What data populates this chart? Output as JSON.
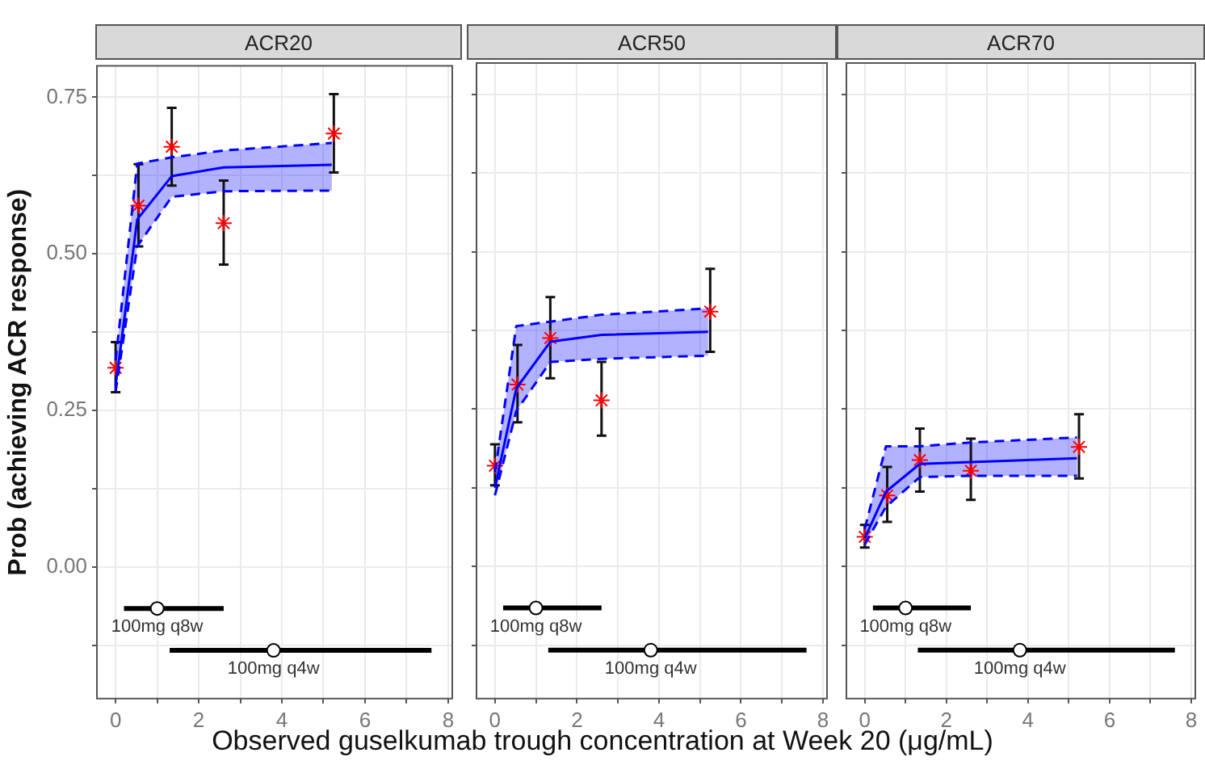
{
  "chart_data": [
    {
      "type": "line",
      "title": "ACR20",
      "ylabel": "Prob (achieving ACR response)",
      "xlim": [
        -0.45,
        8.1
      ],
      "ylim": [
        -0.21,
        0.8
      ],
      "xticks": [
        0,
        {
          "value": 1,
          "label": null
        },
        2,
        {
          "value": 3,
          "label": null
        },
        4,
        {
          "value": 5,
          "label": null
        },
        6,
        {
          "value": 7,
          "label": null
        },
        8
      ],
      "yticks": [
        {
          "value": -0.125,
          "label": null
        },
        {
          "value": 0,
          "label": "0.00"
        },
        {
          "value": 0.125,
          "label": null
        },
        {
          "value": 0.25,
          "label": "0.25"
        },
        {
          "value": 0.375,
          "label": null
        },
        {
          "value": 0.5,
          "label": "0.50"
        },
        {
          "value": 0.625,
          "label": null
        },
        {
          "value": 0.75,
          "label": "0.75"
        }
      ],
      "grid": true,
      "series": [
        {
          "color": "#0000ff",
          "marker": "none",
          "x": [
            0,
            0.52,
            1.35,
            2.6,
            5.2
          ],
          "values": [
            0.29,
            0.555,
            0.624,
            0.638,
            0.642
          ],
          "lower": [
            0.28,
            0.512,
            0.591,
            0.6,
            0.601
          ],
          "upper": [
            0.33,
            0.644,
            0.654,
            0.665,
            0.677
          ]
        },
        {
          "color": "#0000ff",
          "marker": "none",
          "line_style": "dashed",
          "x": [
            0,
            0.52,
            1.35,
            2.6,
            5.2
          ],
          "values": [
            0.28,
            0.512,
            0.591,
            0.6,
            0.601
          ]
        },
        {
          "color": "#0000ff",
          "marker": "none",
          "line_style": "dashed",
          "x": [
            0,
            0.52,
            1.35,
            2.6,
            5.2
          ],
          "values": [
            0.33,
            0.644,
            0.654,
            0.665,
            0.677
          ]
        },
        {
          "type": "scatter",
          "color": "#ff0000",
          "marker": "cross",
          "x": [
            0,
            0.55,
            1.35,
            2.6,
            5.25
          ],
          "values": [
            0.318,
            0.577,
            0.671,
            0.549,
            0.692
          ],
          "errors": [
            [
              0.279,
              0.359
            ],
            [
              0.512,
              0.643
            ],
            [
              0.609,
              0.733
            ],
            [
              0.483,
              0.617
            ],
            [
              0.63,
              0.755
            ]
          ]
        },
        {
          "type": "scatter",
          "color": "#000000",
          "marker": "circle",
          "x": [
            1.0,
            3.8
          ],
          "values": [
            -0.066,
            -0.133
          ],
          "xerrors": [
            [
              0.2,
              2.6
            ],
            [
              1.3,
              7.6
            ]
          ]
        }
      ],
      "annotations": [
        "100mg q8w",
        "100mg q4w"
      ]
    },
    {
      "type": "line",
      "title": "ACR50",
      "xlabel": "Observed guselkumab trough concentration at Week 20 (μg/mL)",
      "xlim": [
        -0.45,
        8.1
      ],
      "ylim": [
        -0.21,
        0.8
      ],
      "tick_labels": "x",
      "xticks": [
        0,
        {
          "value": 1,
          "label": null
        },
        2,
        {
          "value": 3,
          "label": null
        },
        4,
        {
          "value": 5,
          "label": null
        },
        6,
        {
          "value": 7,
          "label": null
        },
        8
      ],
      "yticks": [
        -0.125,
        0,
        0.125,
        0.25,
        0.375,
        0.5,
        0.625,
        0.75
      ],
      "grid": true,
      "series": [
        {
          "color": "#0000ff",
          "marker": "none",
          "x": [
            0,
            0.52,
            1.35,
            2.6,
            5.2
          ],
          "values": [
            0.125,
            0.283,
            0.357,
            0.368,
            0.373
          ],
          "lower": [
            0.113,
            0.247,
            0.325,
            0.33,
            0.335
          ],
          "upper": [
            0.15,
            0.382,
            0.389,
            0.4,
            0.41
          ]
        },
        {
          "color": "#0000ff",
          "marker": "none",
          "line_style": "dashed",
          "x": [
            0,
            0.52,
            1.35,
            2.6,
            5.2
          ],
          "values": [
            0.113,
            0.247,
            0.325,
            0.33,
            0.335
          ]
        },
        {
          "color": "#0000ff",
          "marker": "none",
          "line_style": "dashed",
          "x": [
            0,
            0.52,
            1.35,
            2.6,
            5.2
          ],
          "values": [
            0.15,
            0.382,
            0.389,
            0.4,
            0.41
          ]
        },
        {
          "type": "scatter",
          "color": "#ff0000",
          "marker": "cross",
          "x": [
            0,
            0.55,
            1.35,
            2.6,
            5.25
          ],
          "values": [
            0.16,
            0.289,
            0.363,
            0.264,
            0.405
          ],
          "errors": [
            [
              0.129,
              0.194
            ],
            [
              0.229,
              0.352
            ],
            [
              0.299,
              0.428
            ],
            [
              0.208,
              0.325
            ],
            [
              0.341,
              0.473
            ]
          ]
        },
        {
          "type": "scatter",
          "color": "#000000",
          "marker": "circle",
          "x": [
            1.0,
            3.8
          ],
          "values": [
            -0.066,
            -0.133
          ],
          "xerrors": [
            [
              0.2,
              2.6
            ],
            [
              1.3,
              7.6
            ]
          ]
        }
      ],
      "annotations": [
        "100mg q8w",
        "100mg q4w"
      ]
    },
    {
      "type": "line",
      "title": "ACR70",
      "xlim": [
        -0.45,
        8.1
      ],
      "ylim": [
        -0.21,
        0.8
      ],
      "tick_labels": "x",
      "xticks": [
        0,
        {
          "value": 1,
          "label": null
        },
        2,
        {
          "value": 3,
          "label": null
        },
        4,
        {
          "value": 5,
          "label": null
        },
        6,
        {
          "value": 7,
          "label": null
        },
        8
      ],
      "yticks": [
        -0.125,
        0,
        0.125,
        0.25,
        0.375,
        0.5,
        0.625,
        0.75
      ],
      "grid": true,
      "series": [
        {
          "color": "#0000ff",
          "marker": "none",
          "x": [
            0,
            0.52,
            1.35,
            2.6,
            5.2
          ],
          "values": [
            0.045,
            0.119,
            0.163,
            0.166,
            0.172
          ],
          "lower": [
            0.035,
            0.095,
            0.142,
            0.144,
            0.144
          ],
          "upper": [
            0.06,
            0.191,
            0.191,
            0.197,
            0.205
          ]
        },
        {
          "color": "#0000ff",
          "marker": "none",
          "line_style": "dashed",
          "x": [
            0,
            0.52,
            1.35,
            2.6,
            5.2
          ],
          "values": [
            0.035,
            0.095,
            0.142,
            0.144,
            0.144
          ]
        },
        {
          "color": "#0000ff",
          "marker": "none",
          "line_style": "dashed",
          "x": [
            0,
            0.52,
            1.35,
            2.6,
            5.2
          ],
          "values": [
            0.06,
            0.191,
            0.191,
            0.197,
            0.205
          ]
        },
        {
          "type": "scatter",
          "color": "#ff0000",
          "marker": "cross",
          "x": [
            0,
            0.55,
            1.35,
            2.6,
            5.25
          ],
          "values": [
            0.047,
            0.113,
            0.169,
            0.152,
            0.19
          ],
          "errors": [
            [
              0.03,
              0.066
            ],
            [
              0.071,
              0.158
            ],
            [
              0.119,
              0.219
            ],
            [
              0.106,
              0.203
            ],
            [
              0.14,
              0.242
            ]
          ]
        },
        {
          "type": "scatter",
          "color": "#000000",
          "marker": "circle",
          "x": [
            1.0,
            3.8
          ],
          "values": [
            -0.066,
            -0.133
          ],
          "xerrors": [
            [
              0.2,
              2.6
            ],
            [
              1.3,
              7.6
            ]
          ]
        }
      ],
      "annotations": [
        "100mg q8w",
        "100mg q4w"
      ]
    }
  ]
}
